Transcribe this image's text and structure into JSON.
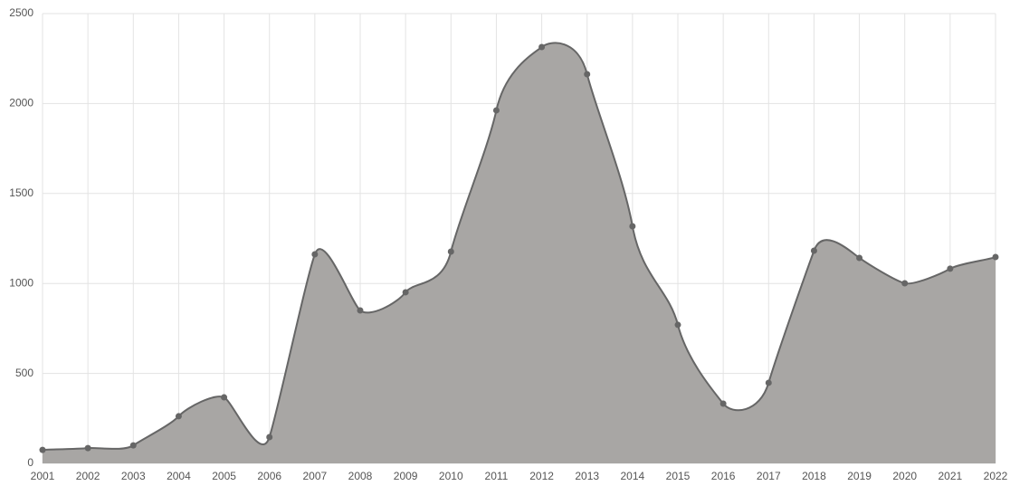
{
  "chart_data": {
    "type": "area",
    "x": [
      "2001",
      "2002",
      "2003",
      "2004",
      "2005",
      "2006",
      "2007",
      "2008",
      "2009",
      "2010",
      "2011",
      "2012",
      "2013",
      "2014",
      "2015",
      "2016",
      "2017",
      "2018",
      "2019",
      "2020",
      "2021",
      "2022"
    ],
    "values": [
      75,
      85,
      100,
      262,
      367,
      146,
      1162,
      850,
      951,
      1177,
      1962,
      2314,
      2163,
      1318,
      770,
      332,
      448,
      1182,
      1142,
      1001,
      1082,
      1147
    ],
    "color": "#a8a6a4",
    "line_color": "#666666",
    "ylim": [
      0,
      2500
    ],
    "yticks": [
      0,
      500,
      1000,
      1500,
      2000,
      2500
    ],
    "grid": true
  }
}
